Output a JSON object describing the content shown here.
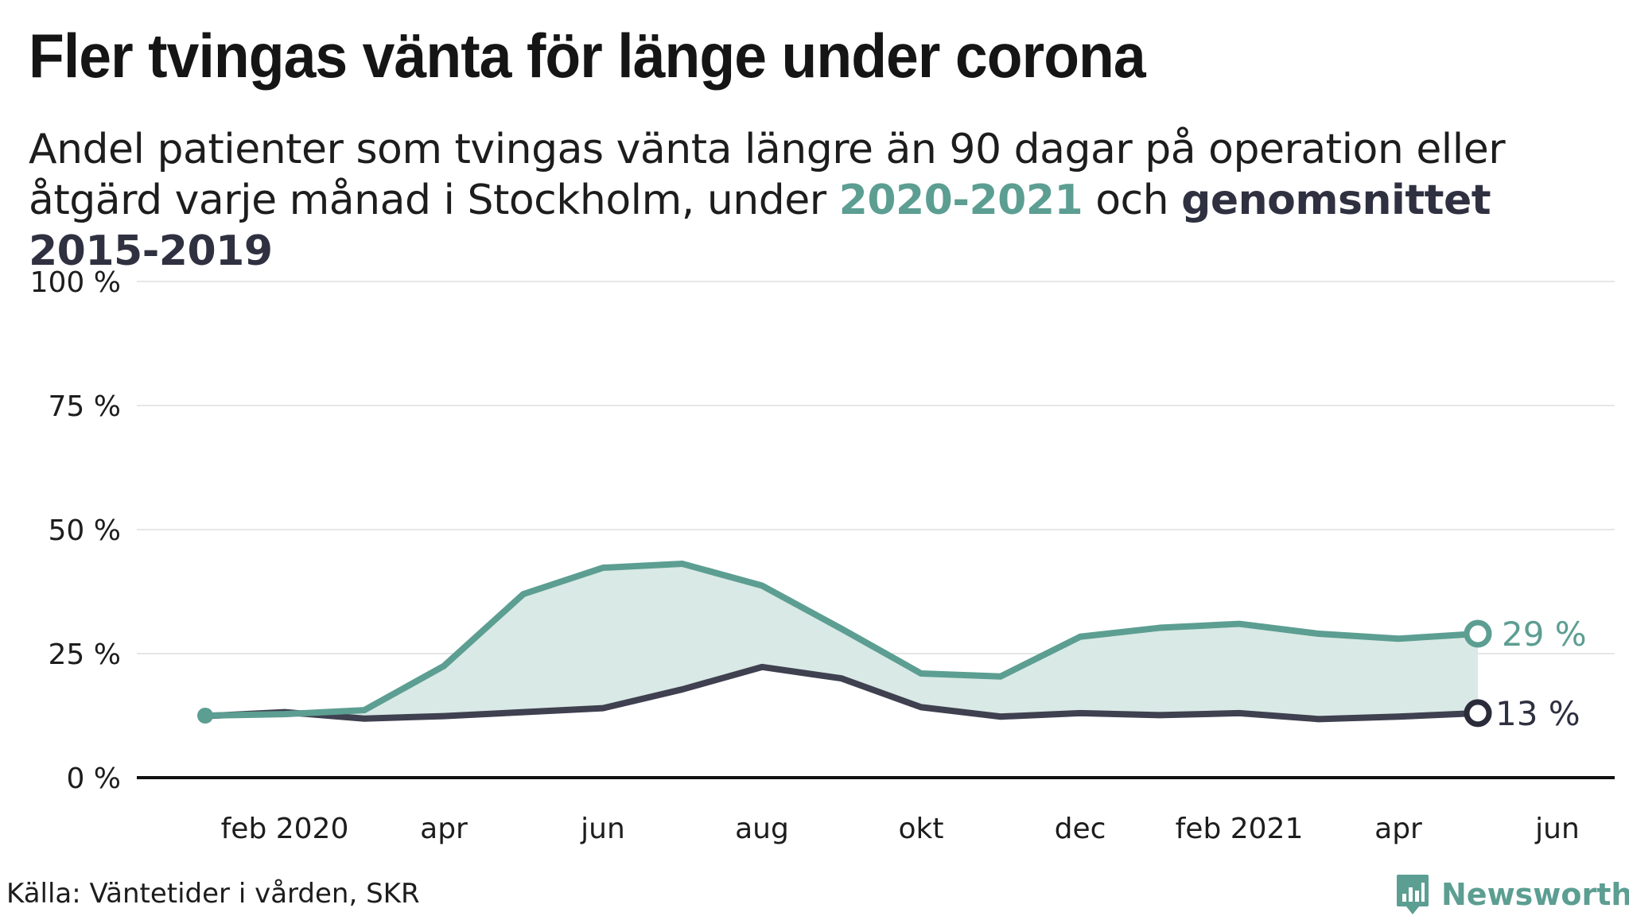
{
  "header": {
    "title": "Fler tvingas vänta för länge under corona",
    "subtitle_part1": "Andel patienter som tvingas vänta längre än 90 dagar på operation eller åtgärd varje månad i Stockholm, under ",
    "subtitle_highlight_2020": "2020-2021",
    "subtitle_part2": " och ",
    "subtitle_highlight_avg": "genomsnittet 2015-2019"
  },
  "footer": {
    "source": "Källa: Väntetider i vården, SKR",
    "brand": "Newsworthy"
  },
  "colors": {
    "series_2020": "#5c9e92",
    "series_avg": "#3f4050",
    "fill": "#d9e9e5",
    "grid": "#e6e6e6",
    "axis": "#111111",
    "marker_avg": "#2b2c3a"
  },
  "chart_data": {
    "type": "line",
    "title": "Fler tvingas vänta för länge under corona",
    "x": [
      "2020-01",
      "2020-02",
      "2020-03",
      "2020-04",
      "2020-05",
      "2020-06",
      "2020-07",
      "2020-08",
      "2020-09",
      "2020-10",
      "2020-11",
      "2020-12",
      "2021-01",
      "2021-02",
      "2021-03",
      "2021-04",
      "2021-05"
    ],
    "series": [
      {
        "name": "2020-2021",
        "values": [
          12.5,
          12.8,
          13.6,
          22.5,
          37,
          42.3,
          43.1,
          38.7,
          30,
          21,
          20.4,
          28.4,
          30.2,
          31,
          29,
          28,
          29
        ],
        "end_label": "29 %"
      },
      {
        "name": "genomsnittet 2015-2019",
        "values": [
          12.4,
          13.2,
          11.9,
          12.4,
          13.2,
          14,
          17.8,
          22.3,
          20,
          14.2,
          12.3,
          13,
          12.6,
          13,
          11.8,
          12.3,
          13
        ],
        "end_label": "13 %"
      }
    ],
    "xlabel": "",
    "ylabel": "",
    "ylim": [
      0,
      100
    ],
    "yticks": [
      0,
      25,
      50,
      75,
      100
    ],
    "ytick_labels": [
      "0 %",
      "25 %",
      "50 %",
      "75 %",
      "100 %"
    ],
    "xticks": [
      {
        "date": "2020-02",
        "label": "feb 2020"
      },
      {
        "date": "2020-04",
        "label": "apr"
      },
      {
        "date": "2020-06",
        "label": "jun"
      },
      {
        "date": "2020-08",
        "label": "aug"
      },
      {
        "date": "2020-10",
        "label": "okt"
      },
      {
        "date": "2020-12",
        "label": "dec"
      },
      {
        "date": "2021-02",
        "label": "feb 2021"
      },
      {
        "date": "2021-04",
        "label": "apr"
      },
      {
        "date": "2021-06",
        "label": "jun"
      }
    ],
    "grid": true,
    "shaded_between_series": true
  }
}
